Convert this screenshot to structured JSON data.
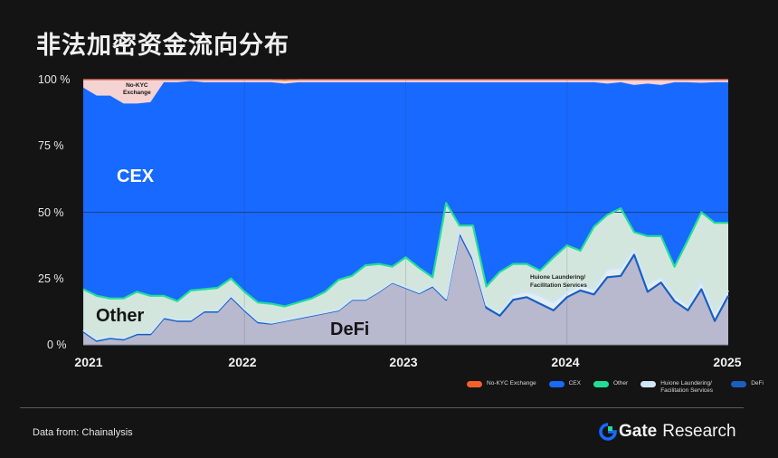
{
  "title": "非法加密资金流向分布",
  "y_axis": {
    "ticks": [
      "100 %",
      "75 %",
      "50 %",
      "25 %",
      "0 %"
    ]
  },
  "x_axis": {
    "ticks": [
      "2021",
      "2022",
      "2023",
      "2024",
      "2025"
    ]
  },
  "annotations": {
    "no_kyc": "No-KYC\nExchange",
    "cex": "CEX",
    "other": "Other",
    "defi": "DeFi",
    "huione": "Huione Laundering/\nFacilitation Services"
  },
  "legend": [
    {
      "label": "No-KYC Exchange",
      "color": "#f4602a"
    },
    {
      "label": "CEX",
      "color": "#1769ff"
    },
    {
      "label": "Other",
      "color": "#22dd99"
    },
    {
      "label": "Huione Laundering/ Facilitation Services",
      "color": "#cfe6f5"
    },
    {
      "label": "DeFi",
      "color": "#1a5fc0"
    }
  ],
  "footer": {
    "source": "Data from:  Chainalysis",
    "brand_gate": "Gate",
    "brand_research": "Research"
  },
  "chart_data": {
    "type": "area",
    "stacked": true,
    "normalized": true,
    "title": "非法加密资金流向分布",
    "xlabel": "",
    "ylabel": "",
    "ylim": [
      0,
      100
    ],
    "grid": false,
    "legend_position": "bottom-right",
    "x": [
      "2021-01",
      "2021-02",
      "2021-03",
      "2021-04",
      "2021-05",
      "2021-06",
      "2021-07",
      "2021-08",
      "2021-09",
      "2021-10",
      "2021-11",
      "2021-12",
      "2022-01",
      "2022-02",
      "2022-03",
      "2022-04",
      "2022-05",
      "2022-06",
      "2022-07",
      "2022-08",
      "2022-09",
      "2022-10",
      "2022-11",
      "2022-12",
      "2023-01",
      "2023-02",
      "2023-03",
      "2023-04",
      "2023-05",
      "2023-06",
      "2023-07",
      "2023-08",
      "2023-09",
      "2023-10",
      "2023-11",
      "2023-12",
      "2024-01",
      "2024-02",
      "2024-03",
      "2024-04",
      "2024-05",
      "2024-06",
      "2024-07",
      "2024-08",
      "2024-09",
      "2024-10",
      "2024-11",
      "2024-12",
      "2025-01"
    ],
    "series": [
      {
        "name": "DeFi",
        "color": "#1a5fc0",
        "values": [
          5,
          1.5,
          2.5,
          2,
          4,
          4,
          10,
          9,
          9,
          12.5,
          12.5,
          18,
          13,
          8.5,
          8,
          9,
          10,
          11,
          12,
          13,
          17,
          17,
          20,
          23.5,
          21.5,
          19.5,
          22,
          17,
          42,
          32,
          14,
          11,
          17,
          18,
          15.5,
          13,
          18,
          20.5,
          19,
          25.5,
          26,
          34,
          20,
          23.5,
          16.5,
          13,
          21,
          9,
          18.5
        ]
      },
      {
        "name": "Huione Laundering/Facilitation Services",
        "color": "#cfe6f5",
        "values": [
          0.5,
          0.5,
          0.5,
          0.5,
          0.5,
          0.5,
          0.5,
          0.5,
          0.5,
          0.5,
          0.5,
          0.5,
          0.5,
          0.5,
          0.3,
          0.3,
          0.3,
          0.3,
          0.3,
          0.3,
          0.3,
          0.3,
          0.3,
          0.3,
          0.3,
          0.3,
          0.5,
          0.5,
          1,
          1,
          1,
          1.5,
          2,
          2,
          3,
          3,
          2,
          2,
          2,
          3,
          3,
          2,
          3,
          2,
          2,
          2,
          3,
          3,
          2
        ]
      },
      {
        "name": "Other",
        "color": "#22dd99",
        "values": [
          15.5,
          16.5,
          14.5,
          15,
          15.5,
          14,
          8,
          7,
          11,
          8,
          8.5,
          6.5,
          6.5,
          7,
          7.2,
          5.2,
          5.7,
          6.2,
          7.7,
          11.2,
          8.7,
          12.7,
          10.2,
          5.7,
          11.2,
          9.2,
          3,
          36,
          2,
          12,
          7,
          15,
          11.5,
          10.5,
          9.5,
          17,
          17.5,
          13,
          23.5,
          20.5,
          22.5,
          6.5,
          18,
          15.5,
          11,
          24.5,
          26,
          34,
          25.5
        ]
      },
      {
        "name": "CEX",
        "color": "#1769ff",
        "values": [
          76,
          75.5,
          76.5,
          73.5,
          71,
          73,
          80.5,
          82.5,
          79,
          78,
          77.5,
          74,
          79,
          83,
          83.5,
          84,
          83,
          81.5,
          79,
          74.5,
          73,
          69,
          68.5,
          69.5,
          66,
          70,
          73.5,
          45.5,
          54,
          54,
          77,
          71.5,
          68.5,
          68.5,
          71,
          66,
          61.5,
          63.5,
          54.5,
          49.5,
          47.5,
          55.5,
          57.5,
          57,
          69.5,
          59.5,
          48.8,
          53,
          53
        ]
      },
      {
        "name": "No-KYC Exchange",
        "color": "#f4602a",
        "values": [
          3,
          6,
          6,
          9,
          9,
          8.5,
          1,
          1,
          0.5,
          1,
          1,
          1,
          1,
          1.5,
          1,
          1,
          1,
          1,
          1,
          1,
          1,
          1,
          1,
          1,
          1,
          1,
          1,
          1,
          1,
          1,
          1,
          1,
          1,
          1,
          1,
          1,
          1,
          1,
          1,
          1.5,
          1,
          2,
          1.5,
          2,
          1,
          1,
          1.2,
          1,
          1
        ]
      }
    ]
  }
}
